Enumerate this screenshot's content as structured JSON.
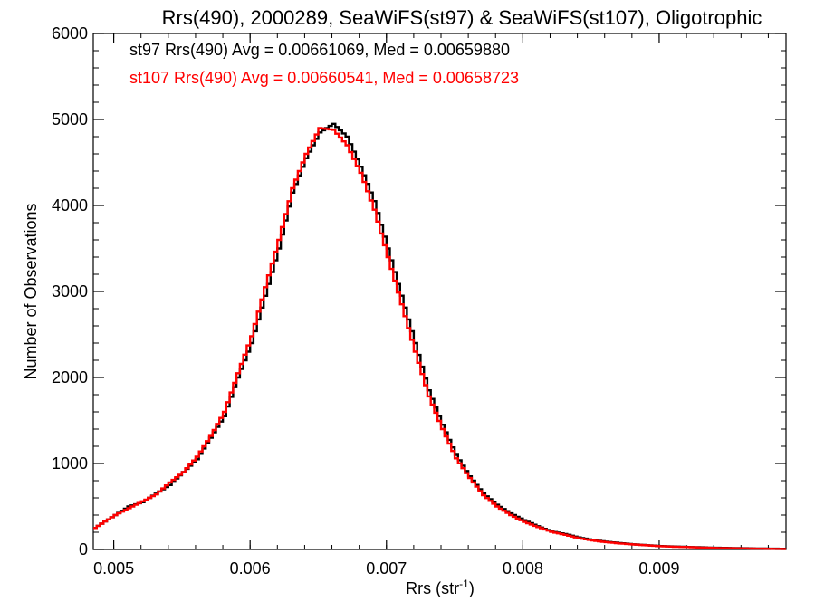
{
  "chart_data": {
    "type": "line",
    "title": "Rrs(490), 2000289, SeaWiFS(st97) & SeaWiFS(st107), Oligotrophic",
    "xlabel": "Rrs (str",
    "xlabel_sup": "-1",
    "xlabel_close": ")",
    "ylabel": "Number of Observations",
    "xlim": [
      0.00485,
      0.00993
    ],
    "ylim": [
      0,
      6000
    ],
    "x_ticks": [
      0.005,
      0.006,
      0.007,
      0.008,
      0.009
    ],
    "x_tick_labels": [
      "0.005",
      "0.006",
      "0.007",
      "0.008",
      "0.009"
    ],
    "y_ticks": [
      0,
      1000,
      2000,
      3000,
      4000,
      5000,
      6000
    ],
    "y_tick_labels": [
      "0",
      "1000",
      "2000",
      "3000",
      "4000",
      "5000",
      "6000"
    ],
    "grid": false,
    "legend_placement": "top-left",
    "series": [
      {
        "name": "st97",
        "color": "#000000",
        "legend": "st97 Rrs(490) Avg = 0.00661069, Med = 0.00659880",
        "x": [
          0.00485,
          0.005,
          0.0051,
          0.0052,
          0.0053,
          0.0054,
          0.0055,
          0.0056,
          0.0057,
          0.0058,
          0.0059,
          0.006,
          0.0061,
          0.0062,
          0.0063,
          0.0064,
          0.0065,
          0.0066,
          0.0067,
          0.0068,
          0.0069,
          0.007,
          0.0071,
          0.0072,
          0.0073,
          0.0074,
          0.0075,
          0.0076,
          0.0077,
          0.0078,
          0.0079,
          0.008,
          0.0081,
          0.0082,
          0.0083,
          0.0084,
          0.0085,
          0.0086,
          0.0087,
          0.0088,
          0.0089,
          0.009,
          0.0091,
          0.0092,
          0.0093,
          0.0094,
          0.0095,
          0.0096,
          0.0097,
          0.0098,
          0.00993
        ],
        "y": [
          250,
          400,
          500,
          550,
          650,
          750,
          900,
          1050,
          1300,
          1550,
          2000,
          2400,
          2950,
          3500,
          4150,
          4550,
          4850,
          4950,
          4800,
          4450,
          4050,
          3500,
          2950,
          2400,
          1850,
          1450,
          1100,
          850,
          650,
          520,
          420,
          340,
          270,
          210,
          180,
          140,
          110,
          90,
          75,
          60,
          50,
          40,
          35,
          30,
          25,
          20,
          18,
          15,
          12,
          10,
          8
        ]
      },
      {
        "name": "st107",
        "color": "#ff0000",
        "legend": "st107 Rrs(490) Avg = 0.00660541, Med = 0.00658723",
        "x": [
          0.00485,
          0.005,
          0.0051,
          0.0052,
          0.0053,
          0.0054,
          0.0055,
          0.0056,
          0.0057,
          0.0058,
          0.0059,
          0.006,
          0.0061,
          0.0062,
          0.0063,
          0.0064,
          0.0065,
          0.0066,
          0.0067,
          0.0068,
          0.0069,
          0.007,
          0.0071,
          0.0072,
          0.0073,
          0.0074,
          0.0075,
          0.0076,
          0.0077,
          0.0078,
          0.0079,
          0.008,
          0.0081,
          0.0082,
          0.0083,
          0.0084,
          0.0085,
          0.0086,
          0.0087,
          0.0088,
          0.0089,
          0.009,
          0.0091,
          0.0092,
          0.0093,
          0.0094,
          0.0095,
          0.0096,
          0.0097,
          0.0098,
          0.00993
        ],
        "y": [
          250,
          400,
          480,
          560,
          640,
          780,
          900,
          1080,
          1320,
          1600,
          2050,
          2480,
          3050,
          3600,
          4200,
          4600,
          4900,
          4880,
          4700,
          4380,
          3950,
          3400,
          2850,
          2300,
          1780,
          1400,
          1060,
          830,
          630,
          500,
          400,
          320,
          260,
          205,
          170,
          130,
          105,
          85,
          70,
          58,
          48,
          38,
          32,
          28,
          22,
          18,
          15,
          13,
          10,
          8,
          6
        ]
      }
    ]
  }
}
